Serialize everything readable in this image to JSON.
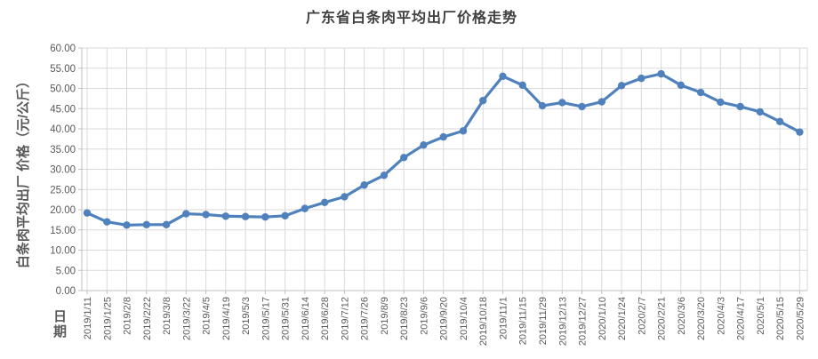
{
  "chart_data": {
    "type": "line",
    "title": "广东省白条肉平均出厂价格走势",
    "x_title": "日期",
    "y_title": "白条肉平均出厂 价格（元/公斤）",
    "categories": [
      "2019/1/11",
      "2019/1/25",
      "2019/2/8",
      "2019/2/22",
      "2019/3/8",
      "2019/3/22",
      "2019/4/5",
      "2019/4/19",
      "2019/5/3",
      "2019/5/17",
      "2019/5/31",
      "2019/6/14",
      "2019/6/28",
      "2019/7/12",
      "2019/7/26",
      "2019/8/9",
      "2019/8/23",
      "2019/9/6",
      "2019/9/20",
      "2019/10/4",
      "2019/10/18",
      "2019/11/1",
      "2019/11/15",
      "2019/11/29",
      "2019/12/13",
      "2019/12/27",
      "2020/1/10",
      "2020/1/24",
      "2020/2/7",
      "2020/2/21",
      "2020/3/6",
      "2020/3/20",
      "2020/4/3",
      "2020/4/17",
      "2020/5/1",
      "2020/5/15",
      "2020/5/29"
    ],
    "values": [
      19.2,
      17.0,
      16.2,
      16.3,
      16.3,
      19.0,
      18.8,
      18.4,
      18.3,
      18.2,
      18.5,
      20.3,
      21.8,
      23.2,
      26.1,
      28.5,
      32.9,
      36.0,
      38.0,
      39.5,
      47.0,
      53.0,
      50.8,
      45.7,
      46.5,
      45.5,
      46.7,
      50.7,
      52.5,
      53.6,
      50.8,
      49.0,
      46.6,
      45.5,
      44.2,
      41.8,
      39.2
    ],
    "ylim": [
      0,
      60
    ],
    "y_step": 5,
    "y_tick_labels": [
      "0.00",
      "5.00",
      "10.00",
      "15.00",
      "20.00",
      "25.00",
      "30.00",
      "35.00",
      "40.00",
      "45.00",
      "50.00",
      "55.00",
      "60.00"
    ],
    "grid": true,
    "legend": "none",
    "colors": {
      "line": "#4F81BD",
      "marker": "#4F81BD",
      "gridline": "#D9D9D9",
      "axis_line": "#BFBFBF",
      "tick_label": "#595959",
      "title": "#404040"
    }
  }
}
